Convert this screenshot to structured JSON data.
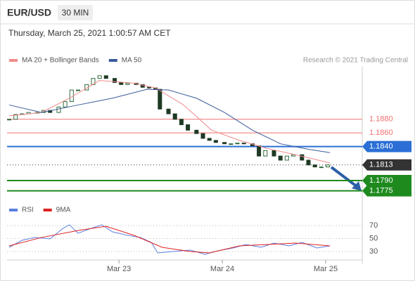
{
  "header": {
    "symbol": "EUR/USD",
    "interval": "30 MIN",
    "timestamp": "Thursday, March 25, 2021 1:00:57 AM CET"
  },
  "chart_data": [
    {
      "type": "candlestick",
      "credit": "Research © 2021 Trading Central",
      "xlim": [
        -52,
        113
      ],
      "ylim": [
        1.1756,
        1.1952
      ],
      "up_color": "#2f6b3a",
      "down_color": "#1e3a24",
      "x": [
        -51,
        -48,
        -45,
        -42,
        -38,
        -35,
        -32,
        -28,
        -25,
        -22,
        -19,
        -15,
        -12,
        -9,
        -6,
        -2,
        1,
        4,
        8,
        11,
        14,
        17,
        19,
        23,
        26,
        29,
        32,
        36,
        39,
        42,
        45,
        49,
        52,
        55,
        58,
        62,
        65,
        68,
        72,
        75,
        78,
        81,
        85,
        88,
        91,
        94,
        97
      ],
      "close": [
        1.188,
        1.1887,
        1.1888,
        1.189,
        1.189,
        1.1893,
        1.189,
        1.1898,
        1.1906,
        1.1923,
        1.1923,
        1.1931,
        1.194,
        1.1944,
        1.194,
        1.1934,
        1.1931,
        1.1933,
        1.1931,
        1.1927,
        1.1926,
        1.1924,
        1.1895,
        1.1888,
        1.188,
        1.1872,
        1.1864,
        1.1859,
        1.1852,
        1.1849,
        1.1846,
        1.1844,
        1.1844,
        1.1845,
        1.1844,
        1.1841,
        1.1826,
        1.1834,
        1.1826,
        1.182,
        1.1826,
        1.1828,
        1.182,
        1.1813,
        1.181,
        1.181,
        1.1813
      ],
      "series": [
        {
          "name": "MA 20 + Bollinger Bands",
          "color": "#f08a8a",
          "x": [
            -51,
            -36,
            -23,
            -9,
            7,
            17,
            30,
            43,
            56,
            69,
            82,
            98
          ],
          "values": [
            1.1885,
            1.189,
            1.1911,
            1.1937,
            1.1933,
            1.1926,
            1.1901,
            1.1864,
            1.1849,
            1.1837,
            1.1828,
            1.1816
          ]
        },
        {
          "name": "MA 50",
          "color": "#3a5a9a",
          "x": [
            -51,
            -36,
            -19,
            -3,
            13,
            23,
            36,
            49,
            62,
            75,
            88,
            98
          ],
          "values": [
            1.1901,
            1.189,
            1.1901,
            1.1911,
            1.1924,
            1.1923,
            1.1911,
            1.189,
            1.1864,
            1.1844,
            1.1836,
            1.1831
          ]
        }
      ],
      "levels": [
        {
          "value": 1.188,
          "label": "1.1880",
          "color": "#f07070",
          "boxed": false
        },
        {
          "value": 1.186,
          "label": "1.1860",
          "color": "#f07070",
          "boxed": false
        },
        {
          "value": 1.184,
          "label": "1.1840",
          "color": "#2b6fd6",
          "boxed": true
        },
        {
          "value": 1.1813,
          "label": "1.1813",
          "color": "#333333",
          "boxed": true
        },
        {
          "value": 1.179,
          "label": "1.1790",
          "color": "#1e8a1e",
          "boxed": true
        },
        {
          "value": 1.1775,
          "label": "1.1775",
          "color": "#1e8a1e",
          "boxed": true
        }
      ]
    },
    {
      "type": "line",
      "xlim": [
        -52,
        113
      ],
      "ylim": [
        17,
        82
      ],
      "yticks": [
        30,
        50,
        70
      ],
      "xticks": [
        {
          "value": 0,
          "label": "Mar 23"
        },
        {
          "value": 48,
          "label": "Mar 24"
        },
        {
          "value": 96,
          "label": "Mar 25"
        }
      ],
      "series": [
        {
          "name": "RSI",
          "color": "#5b7fe0",
          "x": [
            -51,
            -45,
            -39,
            -32,
            -26,
            -23,
            -19,
            -13,
            -8,
            -3,
            4,
            10,
            15,
            18,
            25,
            33,
            40,
            46,
            53,
            59,
            66,
            72,
            79,
            85,
            92,
            98
          ],
          "values": [
            36.5,
            47.3,
            51.6,
            49.5,
            65.7,
            71.1,
            58.1,
            65.7,
            71.1,
            60.3,
            54.9,
            51.6,
            44.1,
            27.8,
            30.0,
            32.2,
            25.7,
            31.1,
            35.4,
            40.8,
            36.5,
            43.0,
            38.7,
            44.1,
            35.4,
            38.7
          ]
        },
        {
          "name": "9MA",
          "color": "#e02020",
          "x": [
            -51,
            -36,
            -19,
            -6,
            7,
            20,
            33,
            42,
            56,
            69,
            82,
            98
          ],
          "values": [
            38.7,
            51.6,
            62.4,
            68.9,
            54.9,
            36.5,
            30.0,
            27.8,
            38.7,
            40.8,
            43.0,
            38.7
          ]
        }
      ]
    }
  ]
}
